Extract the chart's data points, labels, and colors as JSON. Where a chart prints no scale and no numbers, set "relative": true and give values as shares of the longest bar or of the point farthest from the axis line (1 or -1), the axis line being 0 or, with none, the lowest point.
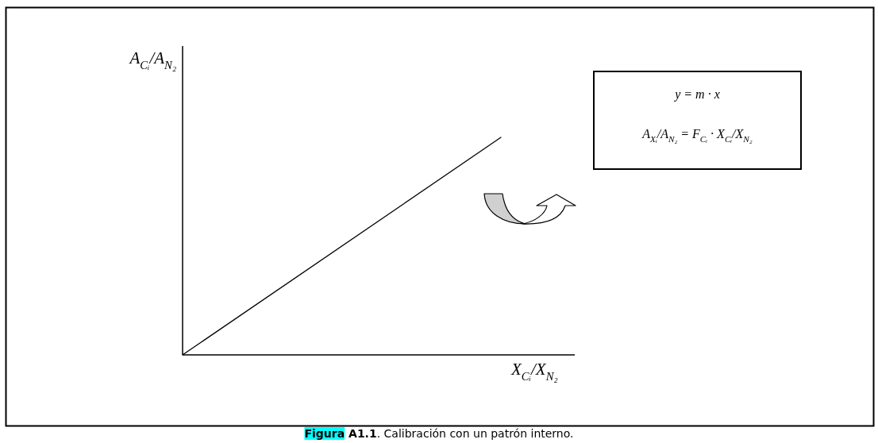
{
  "chart_data": {
    "type": "line",
    "relative": true,
    "xlabel": "X$_{Cᵢ}$/X$_{N₂}$",
    "ylabel": "A$_{Cᵢ}$/A$_{N₂}$",
    "categories": [
      null,
      null
    ],
    "values": [
      0,
      1
    ],
    "color": "#000000",
    "annotations": [
      "y = m · x",
      "A$_{Xᵢ}$/A$_{N₂}$ = F$_{Cᵢ}$ · X$_{Cᵢ}$/X$_{N₂}$",
      "Figura A1.1. Calibración con un patrón interno."
    ]
  }
}
